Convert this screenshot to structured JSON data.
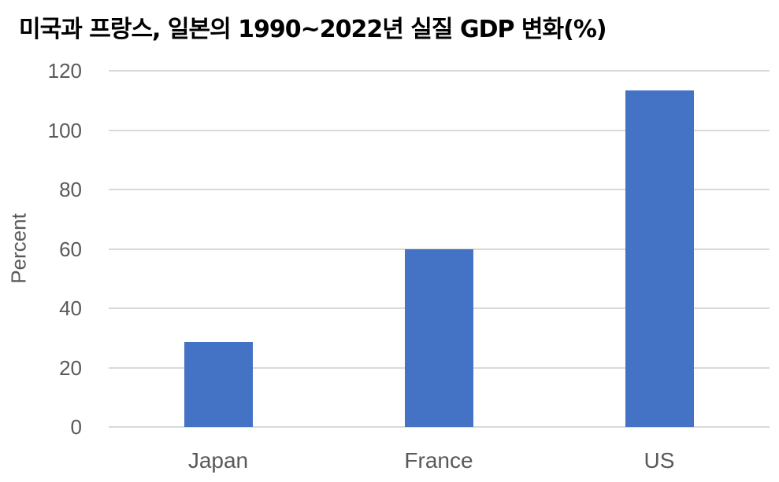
{
  "chart_data": {
    "type": "bar",
    "title": "미국과 프랑스, 일본의 1990~2022년 실질 GDP 변화(%)",
    "xlabel": "",
    "ylabel": "Percent",
    "categories": [
      "Japan",
      "France",
      "US"
    ],
    "values": [
      28.5,
      60,
      113.5
    ],
    "ylim": [
      0,
      120
    ],
    "yticks": [
      0,
      20,
      40,
      60,
      80,
      100,
      120
    ],
    "grid": true,
    "legend": null,
    "bar_color": "#4472c4"
  }
}
